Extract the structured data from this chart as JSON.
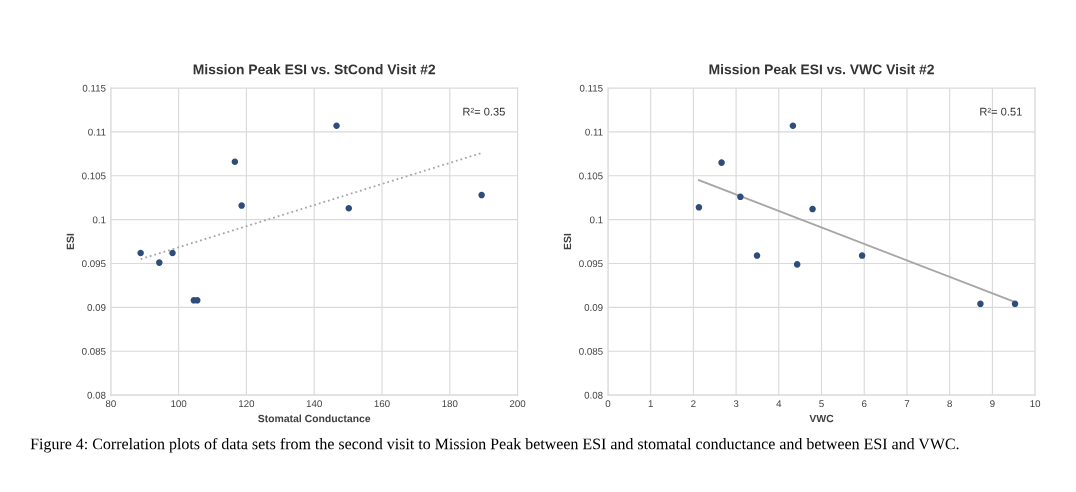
{
  "chart_data": [
    {
      "type": "scatter",
      "title": "Mission Peak ESI vs. StCond Visit #2",
      "xlabel": "Stomatal Conductance",
      "ylabel": "ESI",
      "xlim": [
        80,
        200
      ],
      "xticks": [
        80,
        100,
        120,
        140,
        160,
        180,
        200
      ],
      "ylim": [
        0.08,
        0.115
      ],
      "yticks": [
        {
          "value": 0.08,
          "label": "0.08"
        },
        {
          "value": 0.085,
          "label": "0.085"
        },
        {
          "value": 0.09,
          "label": "0.09"
        },
        {
          "value": 0.095,
          "label": "0.095"
        },
        {
          "value": 0.1,
          "label": "0.1"
        },
        {
          "value": 0.105,
          "label": "0.105"
        },
        {
          "value": 0.11,
          "label": "0.11"
        },
        {
          "value": 0.115,
          "label": "0.115"
        }
      ],
      "grid": true,
      "series": [
        {
          "marker": "circle",
          "color": "#2e4d7a",
          "x": [
            88.8,
            94.3,
            98.2,
            104.5,
            105.5,
            116.6,
            118.6,
            146.6,
            150.2,
            189.4
          ],
          "values": [
            0.0962,
            0.0951,
            0.0962,
            0.0908,
            0.0908,
            0.1066,
            0.1016,
            0.1107,
            0.1013,
            0.1028
          ]
        },
        {
          "type": "line",
          "color": "#a6a6a6",
          "line_style": "dotted",
          "x": [
            88.8,
            189.4
          ],
          "values": [
            0.0955,
            0.1076
          ]
        }
      ],
      "annotations": [
        "R²= 0.35",
        "Figure 4: Correlation plots of data sets from the second visit to Mission Peak between ESI and stomatal conductance and between ESI and VWC."
      ]
    },
    {
      "type": "scatter",
      "title": "Mission Peak ESI vs. VWC Visit #2",
      "xlabel": "VWC",
      "ylabel": "ESI",
      "xlim": [
        0,
        10
      ],
      "xticks": [
        0,
        1,
        2,
        3,
        4,
        5,
        6,
        7,
        8,
        9,
        10
      ],
      "ylim": [
        0.08,
        0.115
      ],
      "yticks": [
        {
          "value": 0.08,
          "label": "0.08"
        },
        {
          "value": 0.085,
          "label": "0.085"
        },
        {
          "value": 0.09,
          "label": "0.09"
        },
        {
          "value": 0.095,
          "label": "0.095"
        },
        {
          "value": 0.1,
          "label": "0.1"
        },
        {
          "value": 0.105,
          "label": "0.105"
        },
        {
          "value": 0.11,
          "label": "0.11"
        },
        {
          "value": 0.115,
          "label": "0.115"
        }
      ],
      "grid": true,
      "series": [
        {
          "marker": "circle",
          "color": "#2e4d7a",
          "x": [
            2.13,
            2.66,
            3.1,
            3.49,
            4.33,
            4.43,
            4.79,
            5.95,
            8.72,
            9.53
          ],
          "values": [
            0.1014,
            0.1065,
            0.1026,
            0.0959,
            0.1107,
            0.0949,
            0.1012,
            0.0959,
            0.0904,
            0.0904
          ]
        },
        {
          "type": "line",
          "color": "#a6a6a6",
          "line_style": "solid",
          "x": [
            2.13,
            9.53
          ],
          "values": [
            0.1045,
            0.0906
          ]
        }
      ],
      "annotations": [
        "R²= 0.51"
      ]
    }
  ]
}
